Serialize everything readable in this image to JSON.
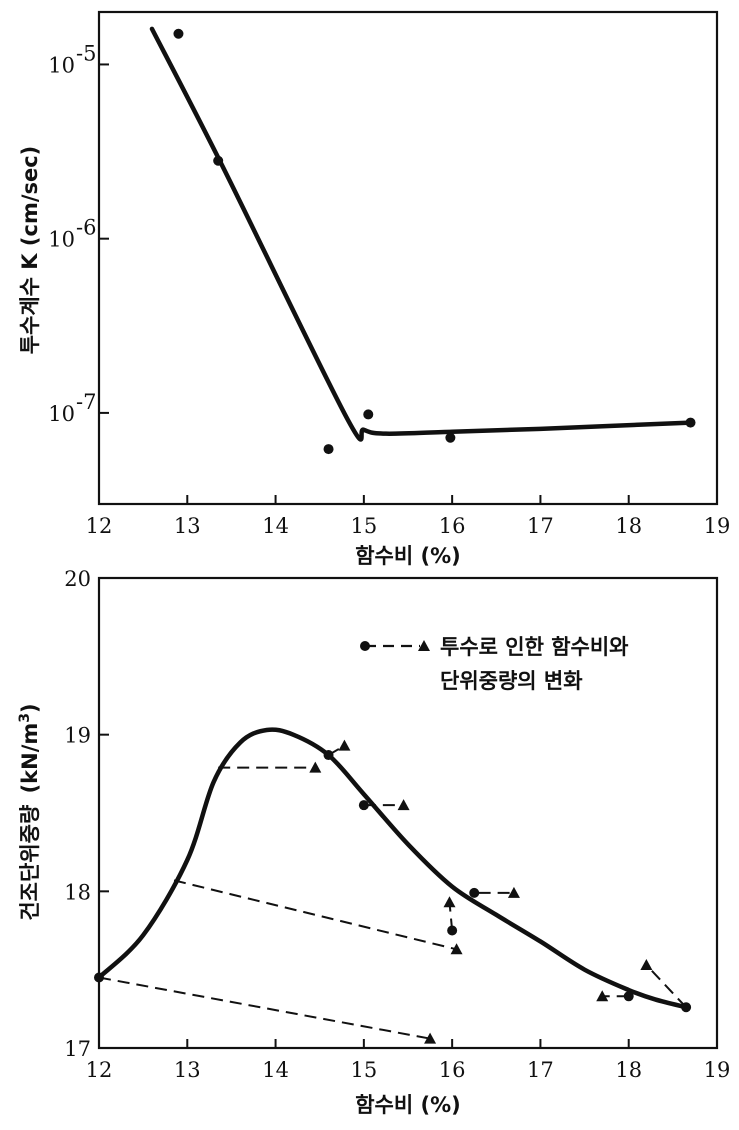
{
  "chart_data": [
    {
      "type": "scatter",
      "title": "",
      "xlabel": "함수비 (%)",
      "ylabel": "투수계수 K (cm/sec)",
      "xscale": "linear",
      "yscale": "log",
      "xlim": [
        12,
        19
      ],
      "ylim": [
        3e-08,
        2e-05
      ],
      "x_ticks": [
        12,
        13,
        14,
        15,
        16,
        17,
        18,
        19
      ],
      "y_ticks": [
        {
          "value": 1e-05,
          "base": "10",
          "exp": "-5"
        },
        {
          "value": 1e-06,
          "base": "10",
          "exp": "-6"
        },
        {
          "value": 1e-07,
          "base": "10",
          "exp": "-7"
        }
      ],
      "grid": false,
      "series": [
        {
          "kind": "points",
          "x": [
            12.9,
            13.35,
            14.6,
            15.05,
            15.98,
            18.7
          ],
          "y": [
            1.5e-05,
            2.8e-06,
            6.2e-08,
            9.8e-08,
            7.2e-08,
            8.8e-08
          ]
        },
        {
          "kind": "curve",
          "x": [
            12.6,
            13.4,
            14.8,
            15.0,
            15.25,
            16.0,
            17.0,
            18.7
          ],
          "y": [
            1.6e-05,
            2.6e-06,
            9.5e-08,
            8e-08,
            7.6e-08,
            7.8e-08,
            8.1e-08,
            8.8e-08
          ]
        }
      ]
    },
    {
      "type": "scatter",
      "title": "",
      "xlabel": "함수비 (%)",
      "ylabel_main": "건조단위중량",
      "ylabel_unit": "(kN/m",
      "ylabel_sup": "3",
      "ylabel_close": ")",
      "xlim": [
        12,
        19
      ],
      "ylim": [
        17,
        20
      ],
      "x_ticks": [
        12,
        13,
        14,
        15,
        16,
        17,
        18,
        19
      ],
      "y_ticks": [
        17,
        18,
        19,
        20
      ],
      "grid": false,
      "legend": {
        "line1": "투수로 인한 함수비와",
        "line2": "단위중량의 변화",
        "placement": "top-right"
      },
      "compaction_curve": {
        "x": [
          12.0,
          12.5,
          13.0,
          13.3,
          13.6,
          13.9,
          14.2,
          14.6,
          15.0,
          15.5,
          16.0,
          16.5,
          17.0,
          17.5,
          18.0,
          18.3,
          18.65
        ],
        "y": [
          17.45,
          17.72,
          18.2,
          18.7,
          18.95,
          19.03,
          19.0,
          18.87,
          18.62,
          18.3,
          18.03,
          17.85,
          17.68,
          17.5,
          17.37,
          17.31,
          17.26
        ]
      },
      "before_points": [
        {
          "x": 12.0,
          "y": 17.45
        },
        {
          "x": 14.6,
          "y": 18.87
        },
        {
          "x": 15.0,
          "y": 18.55
        },
        {
          "x": 16.0,
          "y": 17.75
        },
        {
          "x": 16.25,
          "y": 17.99
        },
        {
          "x": 18.0,
          "y": 17.33
        },
        {
          "x": 18.65,
          "y": 17.26
        }
      ],
      "change_paths": [
        {
          "from": [
            12.0,
            17.45
          ],
          "to": [
            15.75,
            17.06
          ]
        },
        {
          "from": [
            12.85,
            18.07
          ],
          "to": [
            16.05,
            17.63
          ]
        },
        {
          "from": [
            13.35,
            18.79
          ],
          "to": [
            14.45,
            18.79
          ]
        },
        {
          "from": [
            14.6,
            18.87
          ],
          "to": [
            14.78,
            18.93
          ]
        },
        {
          "from": [
            15.0,
            18.55
          ],
          "to": [
            15.45,
            18.55
          ]
        },
        {
          "from": [
            16.0,
            17.75
          ],
          "to": [
            15.97,
            17.93
          ]
        },
        {
          "from": [
            16.3,
            17.99
          ],
          "to": [
            16.7,
            17.99
          ]
        },
        {
          "from": [
            18.0,
            17.33
          ],
          "to": [
            17.7,
            17.33
          ]
        },
        {
          "from": [
            18.65,
            17.26
          ],
          "to": [
            18.2,
            17.53
          ]
        }
      ]
    }
  ]
}
